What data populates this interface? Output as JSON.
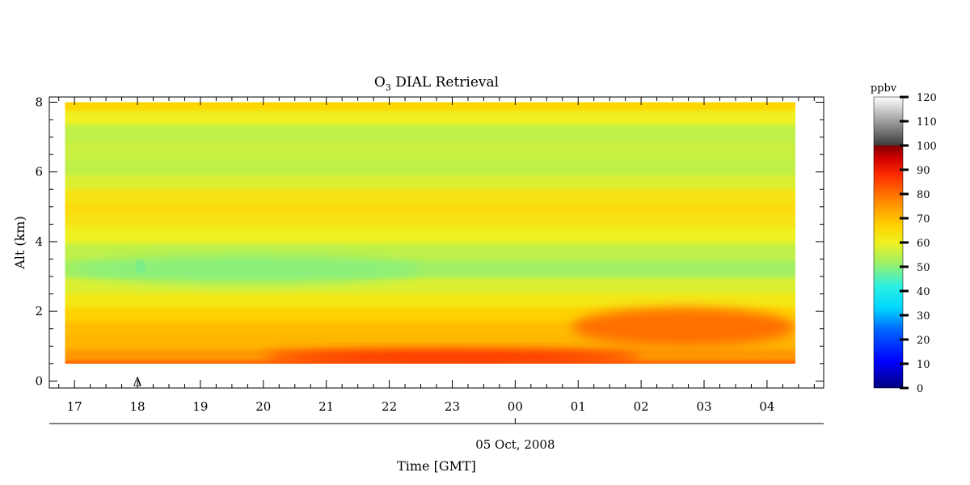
{
  "chart_data": {
    "type": "heatmap",
    "title_main": "O",
    "title_sub": "3",
    "title_rest": " DIAL Retrieval",
    "ylabel": "Alt (km)",
    "xlabel": "Time [GMT]",
    "date_label": "05 Oct, 2008",
    "yticks": [
      "0",
      "2",
      "4",
      "6",
      "8"
    ],
    "ylim": [
      -0.2,
      8.15
    ],
    "xlim_hours": [
      16.6,
      28.9
    ],
    "xticks": [
      {
        "label": "17",
        "hour": 17
      },
      {
        "label": "18",
        "hour": 18
      },
      {
        "label": "19",
        "hour": 19
      },
      {
        "label": "20",
        "hour": 20
      },
      {
        "label": "21",
        "hour": 21
      },
      {
        "label": "22",
        "hour": 22
      },
      {
        "label": "23",
        "hour": 23
      },
      {
        "label": "00",
        "hour": 24
      },
      {
        "label": "01",
        "hour": 25
      },
      {
        "label": "02",
        "hour": 26
      },
      {
        "label": "03",
        "hour": 27
      },
      {
        "label": "04",
        "hour": 28
      }
    ],
    "data_extent": {
      "x_hours": [
        16.85,
        28.45
      ],
      "alt_km": [
        0.5,
        8.0
      ]
    },
    "marker": {
      "symbol": "Δ",
      "hour": 18.0,
      "alt_km": 0.0
    },
    "colorbar": {
      "unit": "ppbv",
      "labels": [
        "0",
        "10",
        "20",
        "30",
        "40",
        "50",
        "60",
        "70",
        "80",
        "90",
        "100",
        "110",
        "120"
      ],
      "range": [
        0,
        120
      ]
    },
    "field_profile": {
      "alt_km": [
        0.5,
        0.8,
        1.2,
        1.6,
        2.0,
        2.4,
        2.8,
        3.3,
        3.8,
        4.3,
        4.7,
        5.0,
        5.4,
        5.8,
        6.2,
        6.7,
        7.2,
        7.7,
        8.0
      ],
      "ppbv": [
        84,
        75,
        71,
        70,
        67,
        62,
        58,
        52,
        55,
        60,
        63,
        65,
        63,
        58,
        55,
        56,
        55,
        60,
        66
      ]
    },
    "features": [
      {
        "hour": [
          24.9,
          28.45
        ],
        "alt_km": [
          1.0,
          2.1
        ],
        "ppbv": 80,
        "desc": "enhanced layer"
      },
      {
        "hour": [
          20.0,
          26.0
        ],
        "alt_km": [
          0.5,
          0.9
        ],
        "ppbv": 88,
        "desc": "surface maximum"
      },
      {
        "hour": [
          17.0,
          22.5
        ],
        "alt_km": [
          2.8,
          3.6
        ],
        "ppbv": 50,
        "desc": "low layer"
      },
      {
        "hour": [
          18.0,
          18.1
        ],
        "alt_km": [
          3.2,
          3.4
        ],
        "ppbv": 36,
        "desc": "minimum"
      }
    ],
    "grid": false
  }
}
